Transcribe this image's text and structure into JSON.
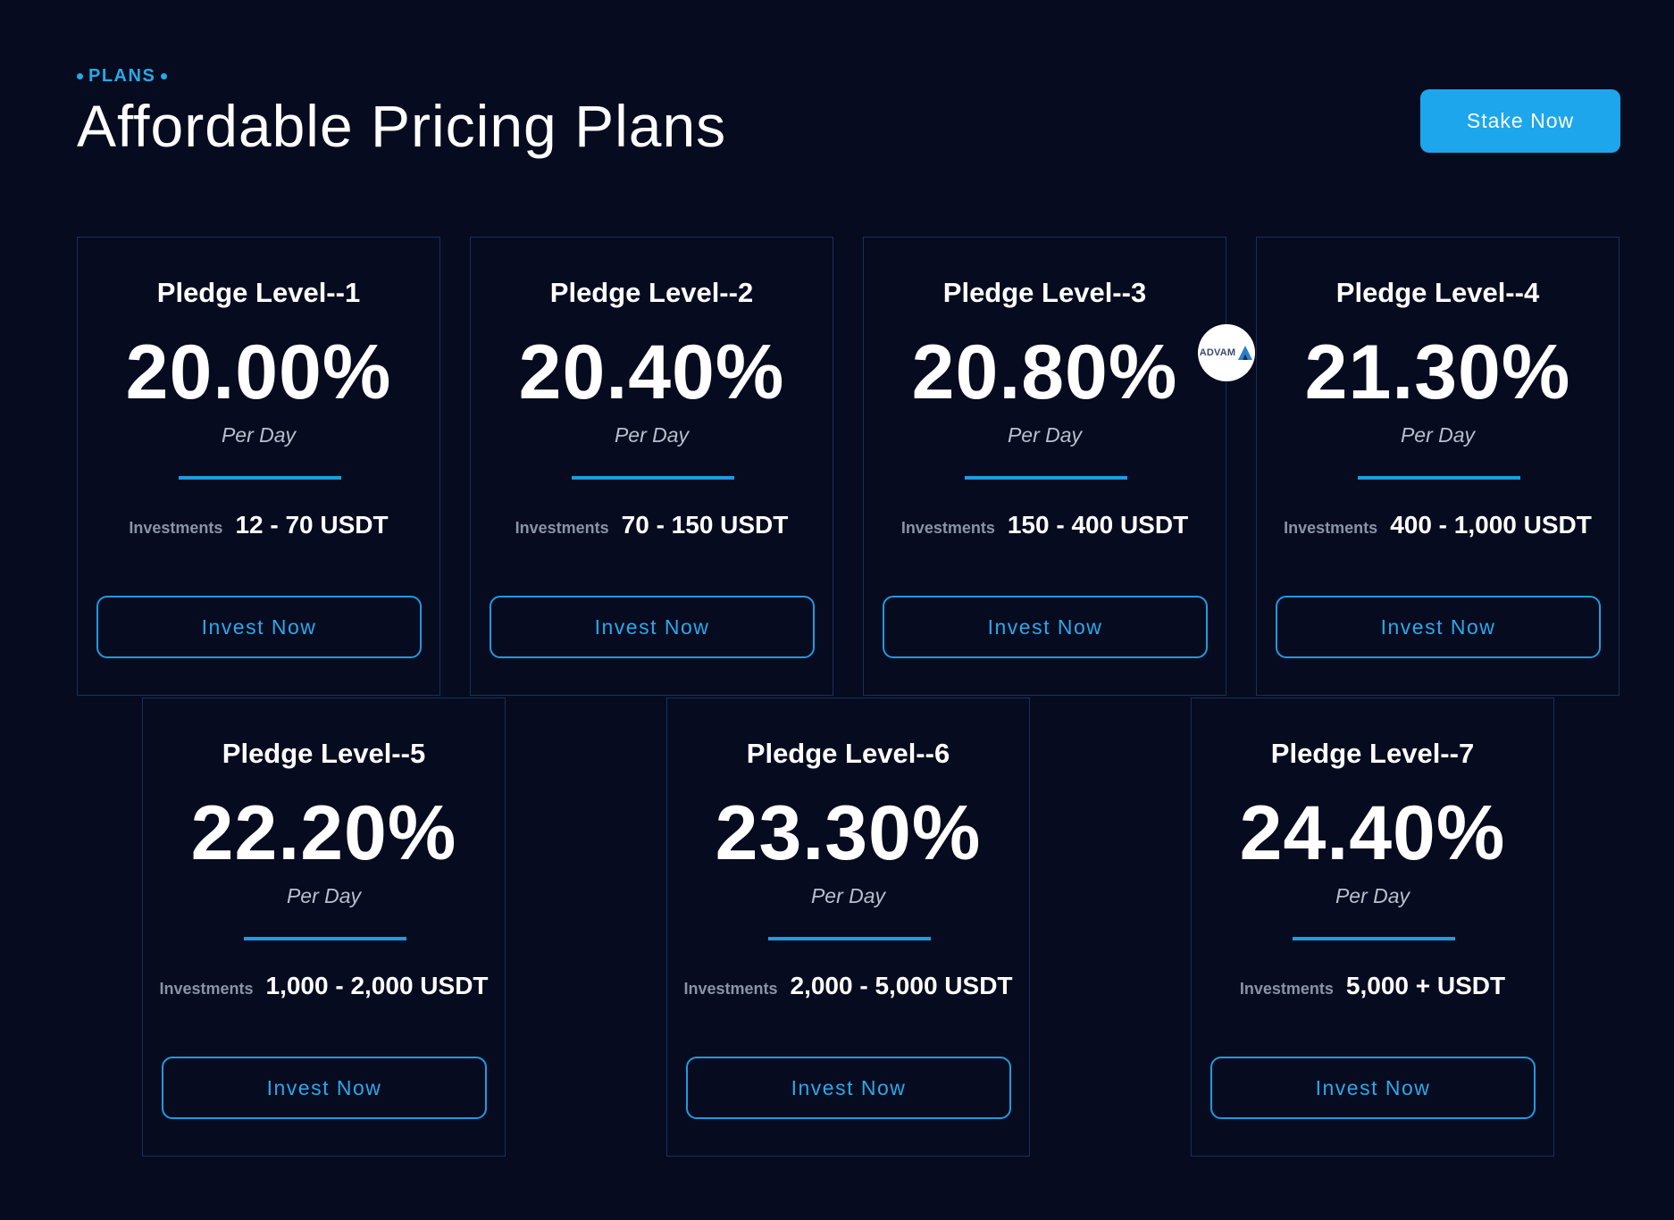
{
  "header": {
    "eyebrow": "PLANS",
    "title": "Affordable Pricing Plans",
    "cta_label": "Stake Now"
  },
  "badge": {
    "text": "ADVAM",
    "icon": "advam-logo-icon"
  },
  "plans": [
    {
      "title": "Pledge Level--1",
      "rate": "20.00%",
      "period": "Per Day",
      "invest_label": "Investments",
      "range": "12 - 70 USDT",
      "button": "Invest Now"
    },
    {
      "title": "Pledge Level--2",
      "rate": "20.40%",
      "period": "Per Day",
      "invest_label": "Investments",
      "range": "70 - 150 USDT",
      "button": "Invest Now"
    },
    {
      "title": "Pledge Level--3",
      "rate": "20.80%",
      "period": "Per Day",
      "invest_label": "Investments",
      "range": "150 - 400 USDT",
      "button": "Invest Now"
    },
    {
      "title": "Pledge Level--4",
      "rate": "21.30%",
      "period": "Per Day",
      "invest_label": "Investments",
      "range": "400 - 1,000 USDT",
      "button": "Invest Now"
    },
    {
      "title": "Pledge Level--5",
      "rate": "22.20%",
      "period": "Per Day",
      "invest_label": "Investments",
      "range": "1,000 - 2,000 USDT",
      "button": "Invest Now"
    },
    {
      "title": "Pledge Level--6",
      "rate": "23.30%",
      "period": "Per Day",
      "invest_label": "Investments",
      "range": "2,000 - 5,000 USDT",
      "button": "Invest Now"
    },
    {
      "title": "Pledge Level--7",
      "rate": "24.40%",
      "period": "Per Day",
      "invest_label": "Investments",
      "range": "5,000 + USDT",
      "button": "Invest Now"
    }
  ],
  "colors": {
    "background": "#060b1f",
    "accent": "#1da6ec",
    "card_border": "#17305a"
  }
}
